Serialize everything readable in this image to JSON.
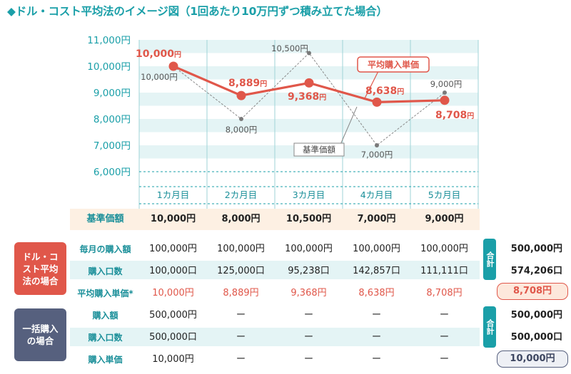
{
  "title": "◆ドル・コスト平均法のイメージ図（1回あたり10万円ずつ積み立てた場合）",
  "colors": {
    "accent": "#1a9fa8",
    "red": "#e0574a",
    "navy": "#56607e",
    "band_teal": "#e4f4f5",
    "band_peach": "#fdf0e3"
  },
  "chart_data": {
    "type": "line",
    "categories": [
      "1カ月目",
      "2カ月目",
      "3カ月目",
      "4カ月目",
      "5カ月目"
    ],
    "yticks": [
      "11,000円",
      "10,000円",
      "9,000円",
      "8,000円",
      "7,000円",
      "6,000円"
    ],
    "ylim": [
      6000,
      11000
    ],
    "series": [
      {
        "name": "平均購入単価",
        "values": [
          10000,
          8889,
          9368,
          8638,
          8708
        ],
        "labels": [
          "10,000",
          "8,889",
          "9,368",
          "8,638",
          "8,708"
        ]
      },
      {
        "name": "基準価額",
        "values": [
          10000,
          8000,
          10500,
          7000,
          9000
        ],
        "labels": [
          "10,000",
          "8,000",
          "10,500",
          "7,000",
          "9,000"
        ]
      }
    ],
    "yen_unit": "円"
  },
  "table": {
    "kijun_label": "基準価額",
    "kijun_values": [
      "10,000円",
      "8,000円",
      "10,500円",
      "7,000円",
      "9,000円"
    ],
    "dca": {
      "group_label": "ドル・コスト平均法の場合",
      "rows": [
        {
          "label": "毎月の購入額",
          "values": [
            "100,000円",
            "100,000円",
            "100,000円",
            "100,000円",
            "100,000円"
          ],
          "total": "500,000円"
        },
        {
          "label": "購入口数",
          "values": [
            "100,000口",
            "125,000口",
            "95,238口",
            "142,857口",
            "111,111口"
          ],
          "total": "574,206口"
        },
        {
          "label": "平均購入単価*",
          "values": [
            "10,000円",
            "8,889円",
            "9,368円",
            "8,638円",
            "8,708円"
          ],
          "total": "8,708円"
        }
      ]
    },
    "lump": {
      "group_label": "一括購入の場合",
      "rows": [
        {
          "label": "購入額",
          "values": [
            "500,000円",
            "ー",
            "ー",
            "ー",
            "ー"
          ],
          "total": "500,000円"
        },
        {
          "label": "購入口数",
          "values": [
            "500,000口",
            "ー",
            "ー",
            "ー",
            "ー"
          ],
          "total": "500,000口"
        },
        {
          "label": "購入単価",
          "values": [
            "10,000円",
            "ー",
            "ー",
            "ー",
            "ー"
          ],
          "total": "10,000円"
        }
      ]
    },
    "total_label": "合計"
  }
}
